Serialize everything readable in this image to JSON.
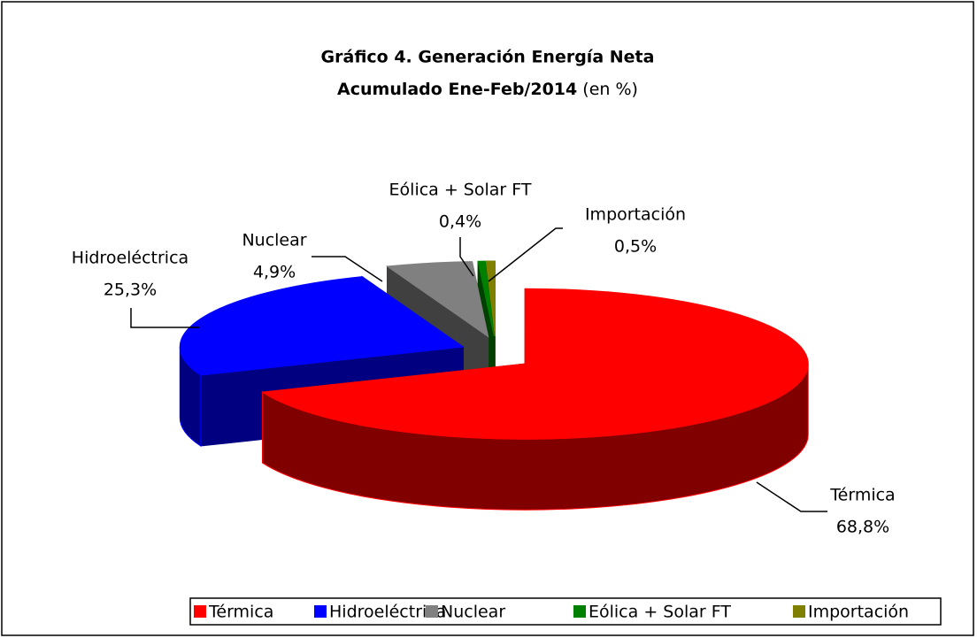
{
  "chart_data": {
    "type": "pie3d",
    "title": "Gráfico 4. Generación Energía Neta",
    "subtitle": "Acumulado Ene-Feb/2014",
    "unit_note": "(en %)",
    "categories": [
      "Térmica",
      "Hidroeléctrica",
      "Nuclear",
      "Eólica + Solar FT",
      "Importación"
    ],
    "values": [
      68.8,
      25.3,
      4.9,
      0.4,
      0.5
    ],
    "value_labels": [
      "68,8%",
      "25,3%",
      "4,9%",
      "0,4%",
      "0,5%"
    ],
    "colors": [
      "#ff0000",
      "#0000ff",
      "#808080",
      "#008000",
      "#808000"
    ],
    "legend": "bottom"
  }
}
